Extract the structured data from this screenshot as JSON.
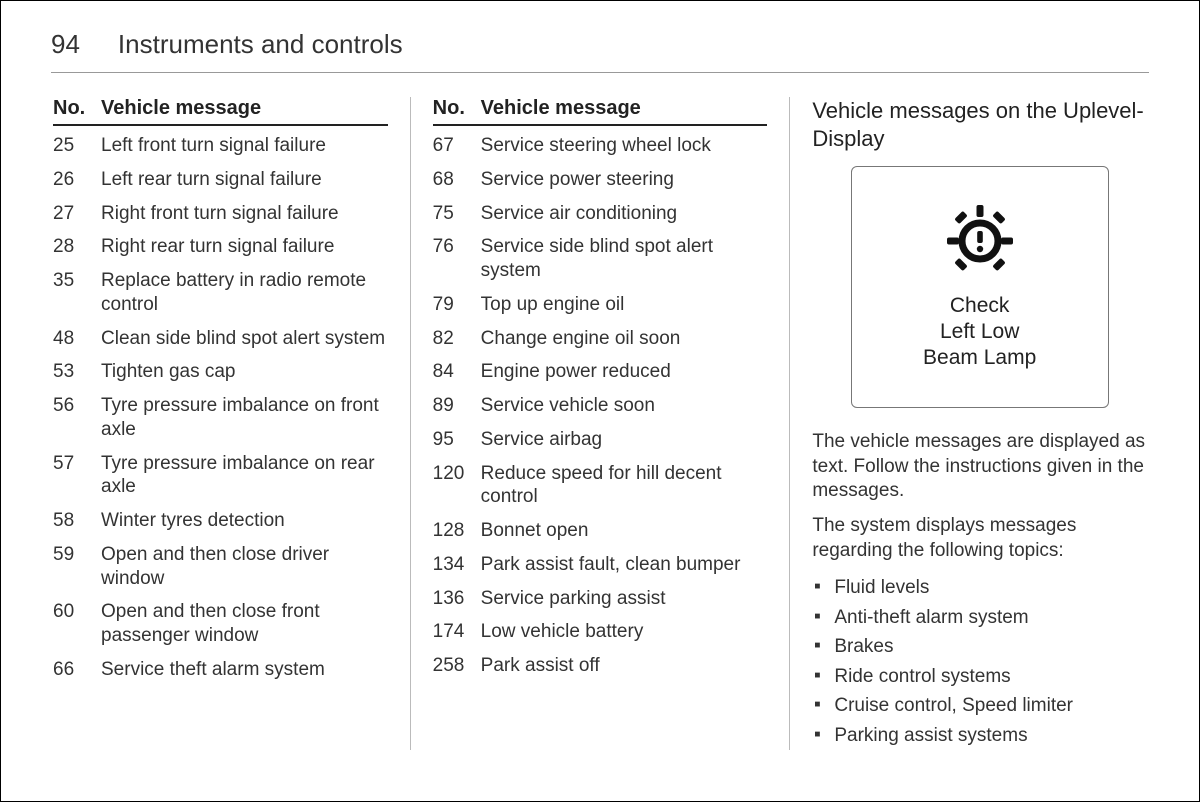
{
  "page_number": "94",
  "chapter_title": "Instruments and controls",
  "table_header": {
    "no": "No.",
    "msg": "Vehicle message"
  },
  "col1_rows": [
    {
      "no": "25",
      "msg": "Left front turn signal failure"
    },
    {
      "no": "26",
      "msg": "Left rear turn signal failure"
    },
    {
      "no": "27",
      "msg": "Right front turn signal failure"
    },
    {
      "no": "28",
      "msg": "Right rear turn signal failure"
    },
    {
      "no": "35",
      "msg": "Replace battery in radio remote control"
    },
    {
      "no": "48",
      "msg": "Clean side blind spot alert system"
    },
    {
      "no": "53",
      "msg": "Tighten gas cap"
    },
    {
      "no": "56",
      "msg": "Tyre pressure imbalance on front axle"
    },
    {
      "no": "57",
      "msg": "Tyre pressure imbalance on rear axle"
    },
    {
      "no": "58",
      "msg": "Winter tyres detection"
    },
    {
      "no": "59",
      "msg": "Open and then close driver window"
    },
    {
      "no": "60",
      "msg": "Open and then close front passenger window"
    },
    {
      "no": "66",
      "msg": "Service theft alarm system"
    }
  ],
  "col2_rows": [
    {
      "no": "67",
      "msg": "Service steering wheel lock"
    },
    {
      "no": "68",
      "msg": "Service power steering"
    },
    {
      "no": "75",
      "msg": "Service air conditioning"
    },
    {
      "no": "76",
      "msg": "Service side blind spot alert system"
    },
    {
      "no": "79",
      "msg": "Top up engine oil"
    },
    {
      "no": "82",
      "msg": "Change engine oil soon"
    },
    {
      "no": "84",
      "msg": "Engine power reduced"
    },
    {
      "no": "89",
      "msg": "Service vehicle soon"
    },
    {
      "no": "95",
      "msg": "Service airbag"
    },
    {
      "no": "120",
      "msg": "Reduce speed for hill decent control"
    },
    {
      "no": "128",
      "msg": "Bonnet open"
    },
    {
      "no": "134",
      "msg": "Park assist fault, clean bumper"
    },
    {
      "no": "136",
      "msg": "Service parking assist"
    },
    {
      "no": "174",
      "msg": "Low vehicle battery"
    },
    {
      "no": "258",
      "msg": "Park assist off"
    }
  ],
  "right": {
    "title": "Vehicle messages on the Uplevel-Display",
    "display_lines": [
      "Check",
      "Left Low",
      "Beam Lamp"
    ],
    "icon_name": "lamp-warning-icon",
    "para1": "The vehicle messages are displayed as text. Follow the instructions given in the messages.",
    "para2": "The system displays messages regarding the following topics:",
    "topics": [
      "Fluid levels",
      "Anti-theft alarm system",
      "Brakes",
      "Ride control systems",
      "Cruise control, Speed limiter",
      "Parking assist systems"
    ]
  },
  "style": {
    "page_border": "#000000",
    "hr_color": "#999999",
    "col_divider": "#bbbbbb",
    "text_color": "#333333",
    "heading_color": "#222222",
    "table_rule": "#222222",
    "display_border": "#777777",
    "display_border_radius": 6,
    "bg": "#ffffff",
    "fontsizes": {
      "page_number": 26,
      "chapter": 26,
      "table_head": 20,
      "row": 19,
      "section_title": 22,
      "display_text": 21,
      "para": 19
    }
  }
}
